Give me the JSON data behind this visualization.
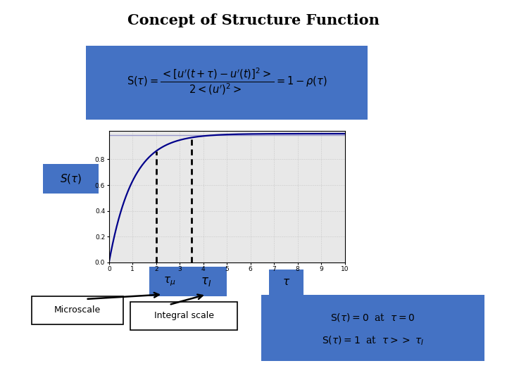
{
  "title": "Concept of Structure Function",
  "title_fontsize": 15,
  "title_fontweight": "bold",
  "bg_color": "#ffffff",
  "formula_box_color": "#4472c4",
  "ylabel_box_color": "#4472c4",
  "tau_mu_box_color": "#4472c4",
  "tau_I_box_color": "#4472c4",
  "tau_box_color": "#4472c4",
  "microscale_label": "Microscale",
  "integral_label": "Integral scale",
  "conditions_box_color": "#4472c4",
  "curve_color": "#00008B",
  "dashed_color": "#000000",
  "tau_mu_val": 2.0,
  "tau_I_val": 3.5,
  "curve_scale": 1.2,
  "x_max": 10,
  "plot_yticks": [
    0.0,
    0.2,
    0.4,
    0.6,
    0.8
  ],
  "grid_color": "#b0b0b0",
  "plot_bg": "#e8e8e8"
}
